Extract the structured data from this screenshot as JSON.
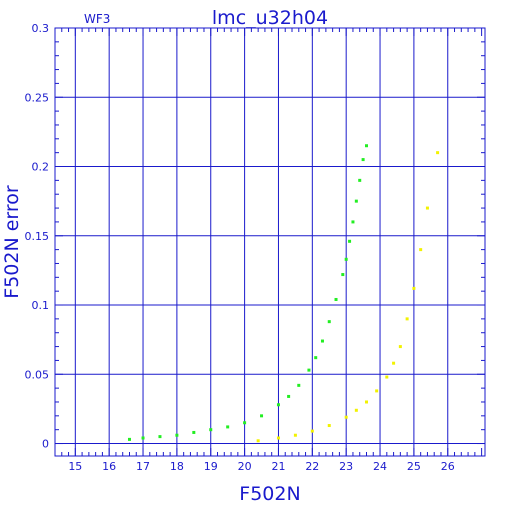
{
  "chart_data": {
    "type": "scatter",
    "title": "lmc_u32h04",
    "subtitle": "WF3",
    "xlabel": "F502N",
    "ylabel": "F502N error",
    "xlim": [
      14.4,
      27.1
    ],
    "ylim": [
      -0.009,
      0.3
    ],
    "xticks": [
      15,
      16,
      17,
      18,
      19,
      20,
      21,
      22,
      23,
      24,
      25,
      26
    ],
    "yticks": [
      0,
      0.05,
      0.1,
      0.15,
      0.2,
      0.25,
      0.3
    ],
    "ytick_labels": [
      "0",
      "0.05",
      "0.1",
      "0.15",
      "0.2",
      "0.25",
      "0.3"
    ],
    "grid": true,
    "colors": {
      "axes": "#1a1acc",
      "grid": "#1a1acc",
      "series_green": "#22ee22",
      "series_yellow": "#f2f200"
    },
    "series": [
      {
        "color": "#22ee22",
        "x": [
          16.6,
          17.0,
          17.5,
          18.0,
          18.5,
          19.0,
          19.5,
          20.0,
          20.5,
          21.0,
          21.3,
          21.6,
          21.9,
          22.1,
          22.3,
          22.5,
          22.7,
          22.9,
          23.0,
          23.1,
          23.2,
          23.3,
          23.4,
          23.5,
          23.6
        ],
        "y": [
          0.003,
          0.004,
          0.005,
          0.006,
          0.008,
          0.01,
          0.012,
          0.015,
          0.02,
          0.028,
          0.034,
          0.042,
          0.053,
          0.062,
          0.074,
          0.088,
          0.104,
          0.122,
          0.133,
          0.146,
          0.16,
          0.175,
          0.19,
          0.205,
          0.215
        ]
      },
      {
        "color": "#f2f200",
        "x": [
          20.4,
          21.0,
          21.5,
          22.0,
          22.5,
          23.0,
          23.3,
          23.6,
          23.9,
          24.2,
          24.4,
          24.6,
          24.8,
          25.0,
          25.2,
          25.4,
          25.7
        ],
        "y": [
          0.002,
          0.004,
          0.006,
          0.009,
          0.013,
          0.019,
          0.024,
          0.03,
          0.038,
          0.048,
          0.058,
          0.07,
          0.09,
          0.112,
          0.14,
          0.17,
          0.21
        ]
      }
    ]
  }
}
